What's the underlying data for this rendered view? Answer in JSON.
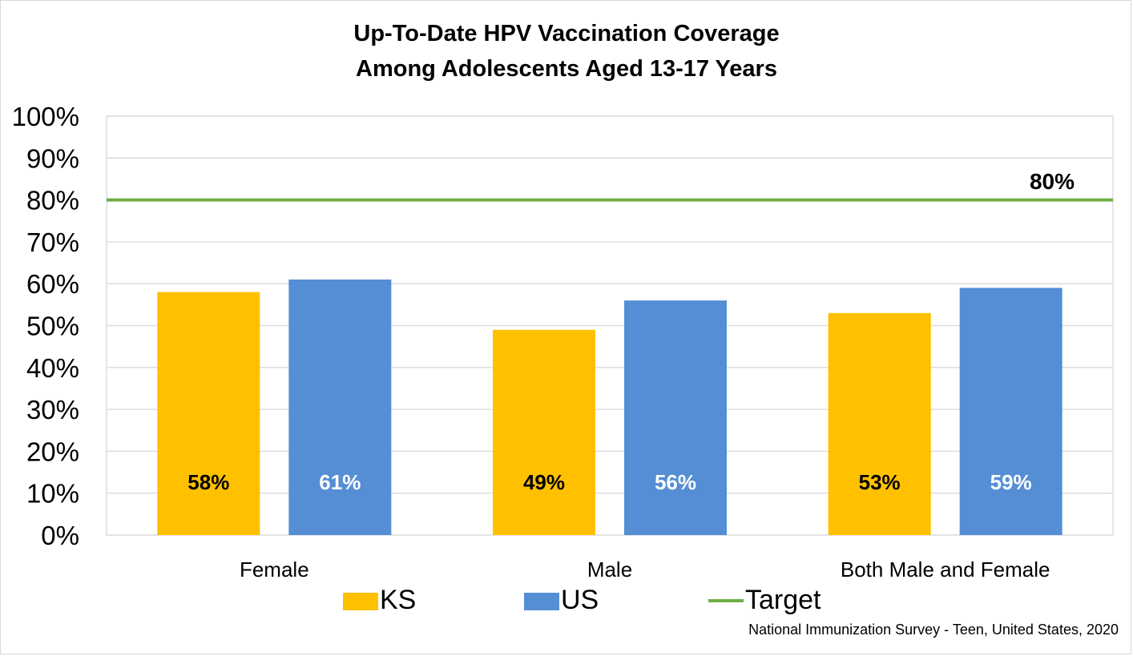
{
  "chart_data": {
    "type": "bar",
    "title_lines": [
      "Up-To-Date HPV Vaccination Coverage",
      "Among Adolescents Aged 13-17 Years"
    ],
    "categories": [
      "Female",
      "Male",
      "Both Male and Female"
    ],
    "series": [
      {
        "name": "KS",
        "values": [
          58,
          49,
          53
        ],
        "labels": [
          "58%",
          "49%",
          "53%"
        ],
        "color": "#FFC000",
        "label_color": "#000000"
      },
      {
        "name": "US",
        "values": [
          61,
          56,
          59
        ],
        "labels": [
          "61%",
          "56%",
          "59%"
        ],
        "color": "#558ED5",
        "label_color": "#FFFFFF"
      }
    ],
    "target": {
      "name": "Target",
      "value": 80,
      "label": "80%",
      "color": "#70AD47"
    },
    "y_ticks": [
      "0%",
      "10%",
      "20%",
      "30%",
      "40%",
      "50%",
      "60%",
      "70%",
      "80%",
      "90%",
      "100%"
    ],
    "ylim": [
      0,
      100
    ],
    "grid": true,
    "legend_position": "bottom",
    "source_note": "National Immunization Survey - Teen, United States, 2020"
  }
}
